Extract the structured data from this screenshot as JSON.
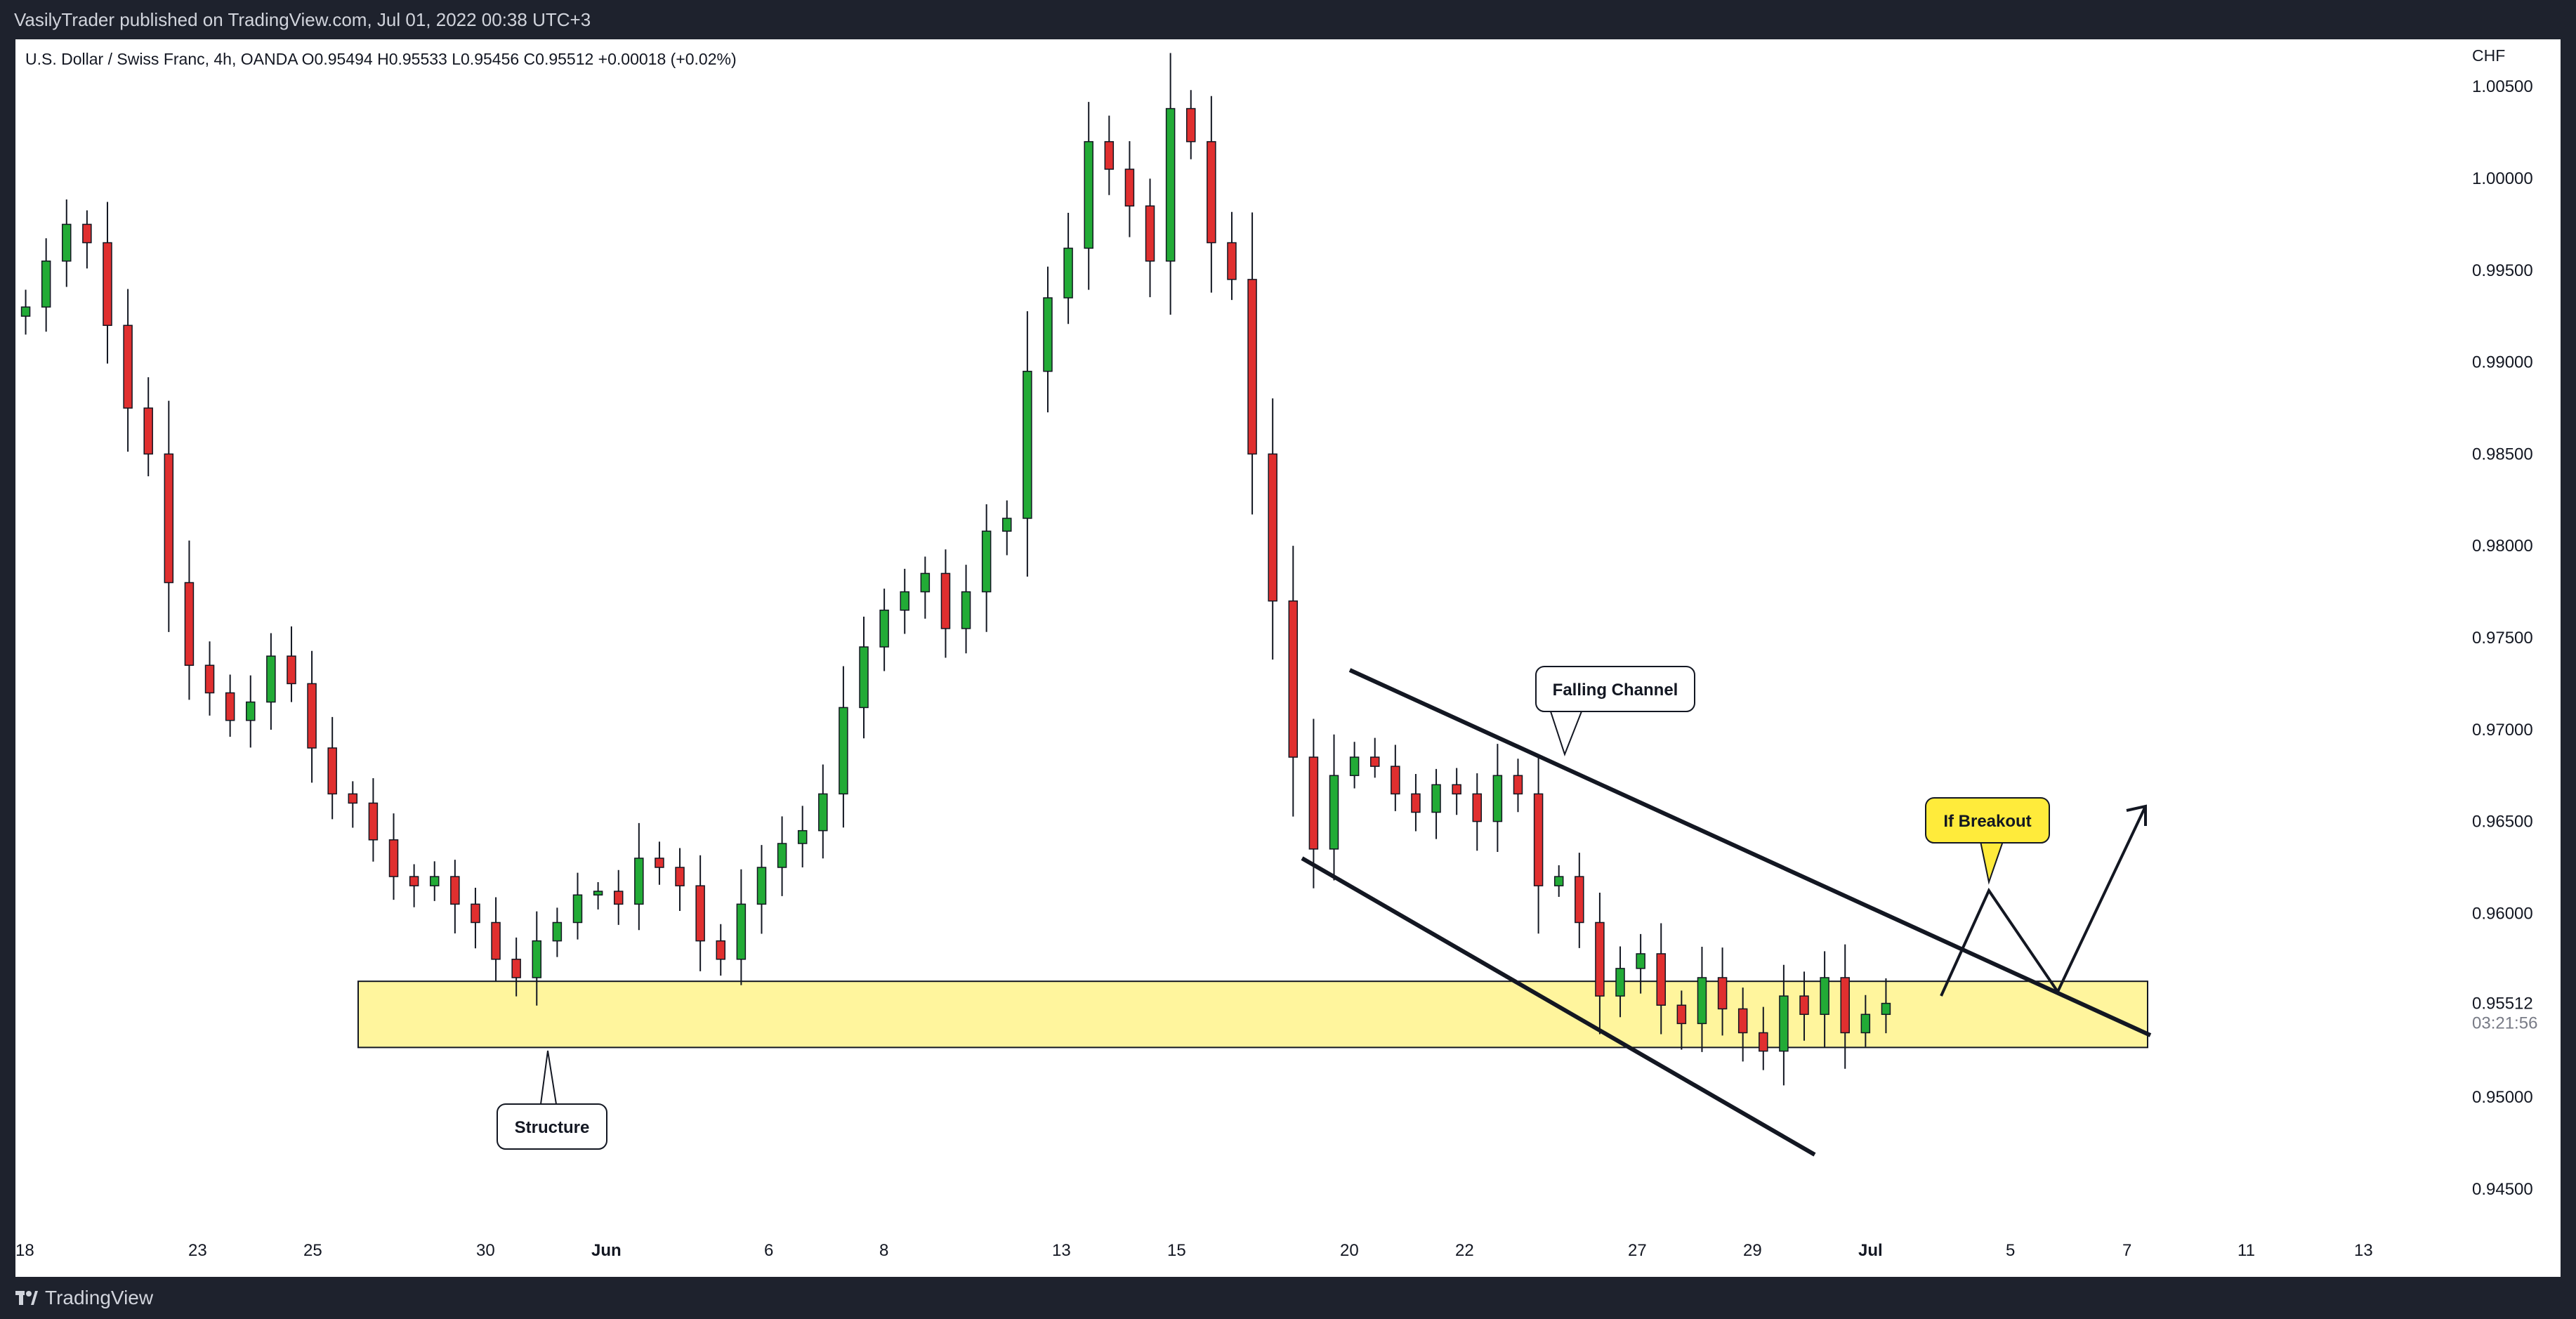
{
  "publisher_line": "VasilyTrader published on TradingView.com, Jul 01, 2022 00:38 UTC+3",
  "brand": "TradingView",
  "colors": {
    "up": "#22ab36",
    "down": "#e02f2f",
    "zone": "#fff59d"
  },
  "chart_data": {
    "type": "candlestick",
    "symbol_line": "U.S. Dollar / Swiss Franc, 4h, OANDA  O0.95494  H0.95533  L0.95456  C0.95512  +0.00018 (+0.02%)",
    "currency": "CHF",
    "ylim": [
      0.9425,
      1.0065
    ],
    "y_ticks": [
      "1.00500",
      "1.00000",
      "0.99500",
      "0.99000",
      "0.98500",
      "0.98000",
      "0.97500",
      "0.97000",
      "0.96500",
      "0.96000",
      "0.95000",
      "0.94500"
    ],
    "x_ticks": [
      "18",
      "23",
      "25",
      "30",
      "Jun",
      "6",
      "8",
      "13",
      "15",
      "20",
      "22",
      "27",
      "29",
      "Jul",
      "5",
      "7",
      "11",
      "13"
    ],
    "last_price": "0.95512",
    "countdown": "03:21:56",
    "price_path": [
      0.9925,
      0.993,
      0.9955,
      0.9975,
      0.9965,
      0.992,
      0.9875,
      0.985,
      0.978,
      0.9735,
      0.972,
      0.9705,
      0.9715,
      0.974,
      0.9725,
      0.969,
      0.9665,
      0.966,
      0.964,
      0.962,
      0.9615,
      0.962,
      0.9605,
      0.9595,
      0.9575,
      0.9565,
      0.9585,
      0.9595,
      0.961,
      0.9612,
      0.9605,
      0.963,
      0.9625,
      0.9615,
      0.9585,
      0.9575,
      0.9605,
      0.9625,
      0.9638,
      0.9645,
      0.9665,
      0.9712,
      0.9745,
      0.9765,
      0.9775,
      0.9785,
      0.9755,
      0.9775,
      0.9808,
      0.9815,
      0.9895,
      0.9935,
      0.9962,
      1.002,
      1.0005,
      0.9985,
      0.9955,
      1.0038,
      1.002,
      0.9965,
      0.9945,
      0.985,
      0.977,
      0.9685,
      0.9635,
      0.9675,
      0.9685,
      0.968,
      0.9665,
      0.9655,
      0.967,
      0.9665,
      0.965,
      0.9675,
      0.9665,
      0.9615,
      0.962,
      0.9595,
      0.9555,
      0.957,
      0.9578,
      0.955,
      0.954,
      0.9565,
      0.9548,
      0.9535,
      0.9525,
      0.9555,
      0.9545,
      0.9565,
      0.9535,
      0.9545,
      0.9551
    ],
    "annotations": {
      "falling_channel": "Falling Channel",
      "structure": "Structure",
      "if_breakout": "If Breakout"
    },
    "structure_zone": [
      0.9527,
      0.9563
    ]
  }
}
